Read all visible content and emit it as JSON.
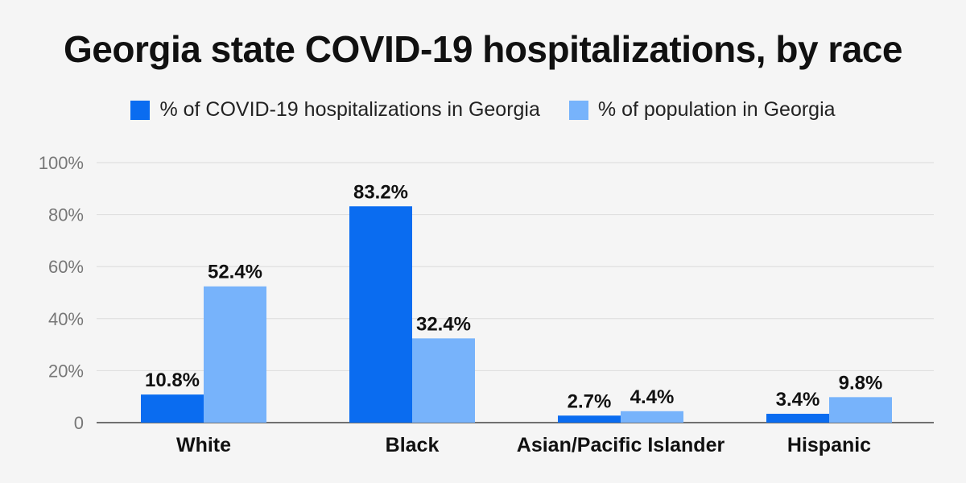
{
  "chart_data": {
    "type": "bar",
    "title": "Georgia state COVID-19 hospitalizations, by race",
    "categories": [
      "White",
      "Black",
      "Asian/Pacific Islander",
      "Hispanic"
    ],
    "series": [
      {
        "name": "% of COVID-19 hospitalizations in Georgia",
        "values": [
          10.8,
          83.2,
          2.7,
          3.4
        ],
        "labels": [
          "10.8%",
          "83.2%",
          "2.7%",
          "3.4%"
        ],
        "color": "#0a6cf0"
      },
      {
        "name": "% of population in Georgia",
        "values": [
          52.4,
          32.4,
          4.4,
          9.8
        ],
        "labels": [
          "52.4%",
          "32.4%",
          "4.4%",
          "9.8%"
        ],
        "color": "#77b3fb"
      }
    ],
    "yticks": [
      "0",
      "20%",
      "40%",
      "60%",
      "80%",
      "100%"
    ],
    "ylim": [
      0,
      100
    ],
    "grid": true,
    "legend_position": "top-center"
  }
}
